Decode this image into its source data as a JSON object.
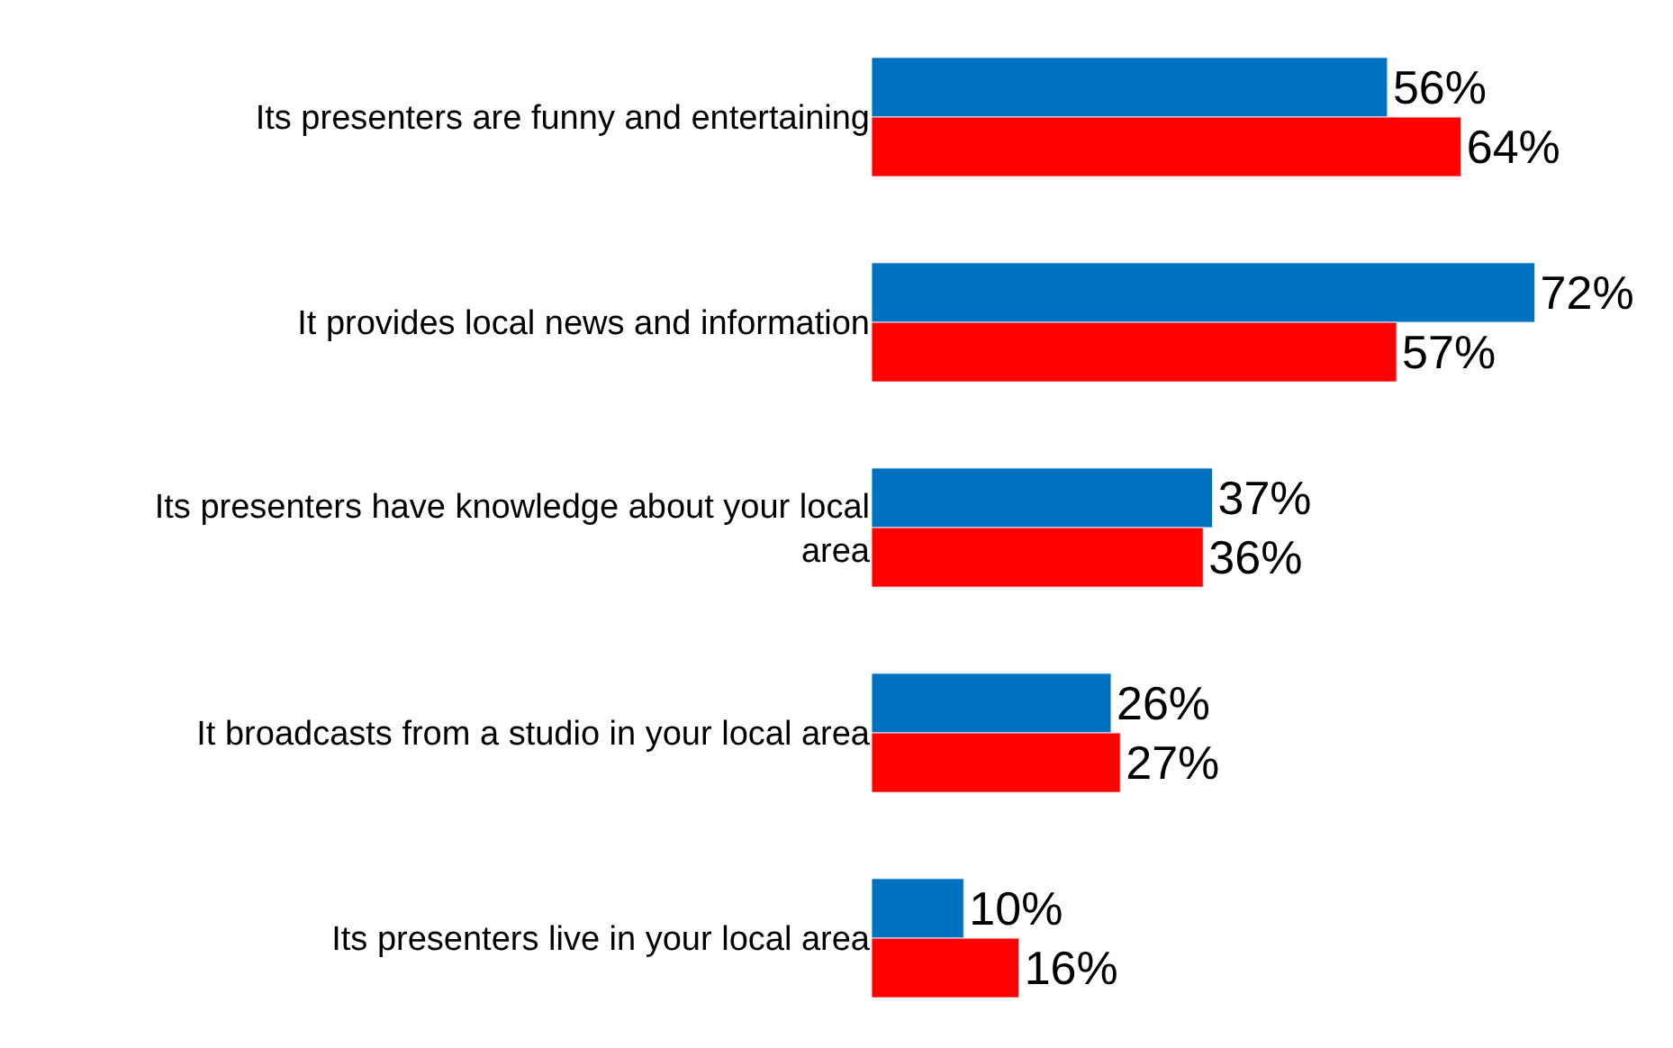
{
  "chart_data": {
    "type": "bar",
    "orientation": "horizontal",
    "categories": [
      "Its presenters are funny and entertaining",
      "It provides local news and information",
      "Its presenters have knowledge about your local area",
      "It broadcasts from a studio in your local area",
      "Its presenters live in your local area"
    ],
    "series": [
      {
        "color": "#0070c0",
        "values": [
          56,
          72,
          37,
          26,
          10
        ],
        "value_labels": [
          "56%",
          "72%",
          "37%",
          "26%",
          "10%"
        ]
      },
      {
        "color": "#ff0000",
        "values": [
          64,
          57,
          36,
          27,
          16
        ],
        "value_labels": [
          "64%",
          "57%",
          "36%",
          "27%",
          "16%"
        ]
      }
    ],
    "xlim": [
      0,
      87
    ],
    "tick_labels": "y"
  }
}
